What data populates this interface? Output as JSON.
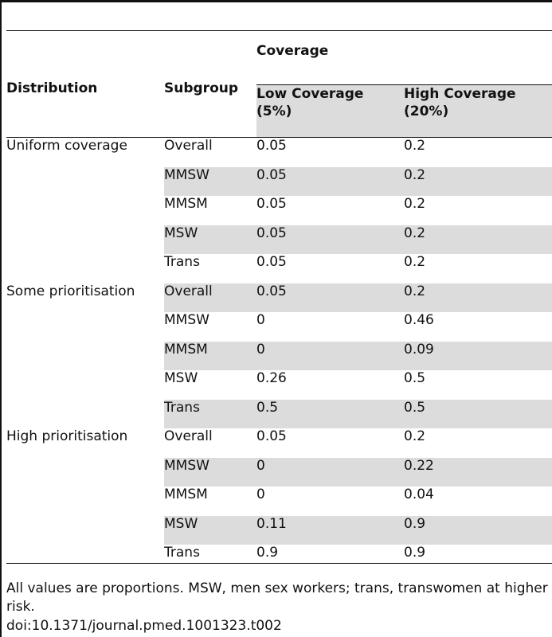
{
  "table": {
    "headers": {
      "distribution": "Distribution",
      "subgroup": "Subgroup",
      "coverage": "Coverage",
      "low": "Low Coverage (5%)",
      "high": "High Coverage (20%)"
    },
    "rows": [
      {
        "distribution": "Uniform coverage",
        "subgroup": "Overall",
        "low": "0.05",
        "high": "0.2"
      },
      {
        "distribution": "",
        "subgroup": "MMSW",
        "low": "0.05",
        "high": "0.2"
      },
      {
        "distribution": "",
        "subgroup": "MMSM",
        "low": "0.05",
        "high": "0.2"
      },
      {
        "distribution": "",
        "subgroup": "MSW",
        "low": "0.05",
        "high": "0.2"
      },
      {
        "distribution": "",
        "subgroup": "Trans",
        "low": "0.05",
        "high": "0.2"
      },
      {
        "distribution": "Some prioritisation",
        "subgroup": "Overall",
        "low": "0.05",
        "high": "0.2"
      },
      {
        "distribution": "",
        "subgroup": "MMSW",
        "low": "0",
        "high": "0.46"
      },
      {
        "distribution": "",
        "subgroup": "MMSM",
        "low": "0",
        "high": "0.09"
      },
      {
        "distribution": "",
        "subgroup": "MSW",
        "low": "0.26",
        "high": "0.5"
      },
      {
        "distribution": "",
        "subgroup": "Trans",
        "low": "0.5",
        "high": "0.5"
      },
      {
        "distribution": "High prioritisation",
        "subgroup": "Overall",
        "low": "0.05",
        "high": "0.2"
      },
      {
        "distribution": "",
        "subgroup": "MMSW",
        "low": "0",
        "high": "0.22"
      },
      {
        "distribution": "",
        "subgroup": "MMSM",
        "low": "0",
        "high": "0.04"
      },
      {
        "distribution": "",
        "subgroup": "MSW",
        "low": "0.11",
        "high": "0.9"
      },
      {
        "distribution": "",
        "subgroup": "Trans",
        "low": "0.9",
        "high": "0.9"
      }
    ]
  },
  "footnote": "All values are proportions. MSW, men sex workers; trans, transwomen at higher risk.",
  "doi": "doi:10.1371/journal.pmed.1001323.t002",
  "colors": {
    "row_shade": "#dcdcdc",
    "rule": "#111111"
  }
}
